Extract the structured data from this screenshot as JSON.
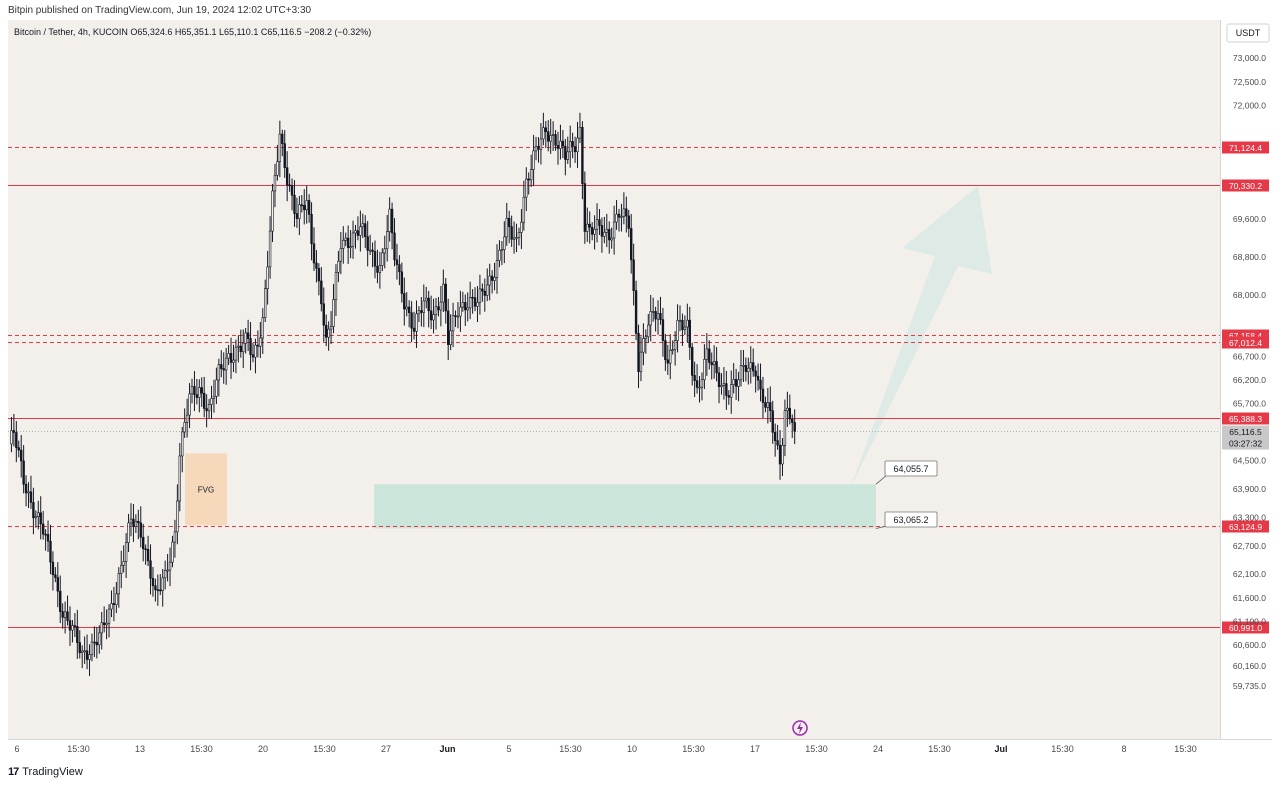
{
  "header": {
    "published": "Bitpin published on TradingView.com,  Jun 19, 2024 12:02 UTC+3:30"
  },
  "footer": {
    "logo_text": "TradingView"
  },
  "colors": {
    "background": "#f3f0ec",
    "candle": "#131722",
    "level_line": "#e53947",
    "level_label_bg": "#e53947",
    "current_price_bg": "#c8c8c8",
    "zone_fill": "#bfe2d6",
    "fvg_fill": "#f6d5b6",
    "arrow_fill": "#d3e7e2"
  },
  "chart_data": {
    "type": "candlestick",
    "symbol_line": "Bitcoin / Tether, 4h, KUCOIN  O65,324.6  H65,351.1  L65,110.1  C65,116.5  −208.2 (−0.32%)",
    "currency_label": "USDT",
    "ylim": [
      59500,
      73500
    ],
    "y_ticks": [
      "73,000.0",
      "72,500.0",
      "72,000.0",
      "69,600.0",
      "68,800.0",
      "68,000.0",
      "66,700.0",
      "66,200.0",
      "65,700.0",
      "64,500.0",
      "63,900.0",
      "63,300.0",
      "62,700.0",
      "62,100.0",
      "61,600.0",
      "61,100.0",
      "60,600.0",
      "60,160.0",
      "59,735.0"
    ],
    "y_tick_values": [
      73000,
      72500,
      72000,
      69600,
      68800,
      68000,
      66700,
      66200,
      65700,
      64500,
      63900,
      63300,
      62700,
      62100,
      61600,
      61100,
      60600,
      60160,
      59735
    ],
    "x_ticks": [
      "6",
      "15:30",
      "13",
      "15:30",
      "20",
      "15:30",
      "27",
      "Jun",
      "5",
      "15:30",
      "10",
      "15:30",
      "17",
      "15:30",
      "24",
      "15:30",
      "Jul",
      "15:30",
      "8",
      "15:30"
    ],
    "x_tick_bold": [
      false,
      false,
      false,
      false,
      false,
      false,
      false,
      true,
      false,
      false,
      false,
      false,
      false,
      false,
      false,
      false,
      true,
      false,
      false,
      false
    ],
    "horizontal_levels": [
      {
        "price": 71124.4,
        "label": "71,124.4",
        "style": "dashed"
      },
      {
        "price": 70330.2,
        "label": "70,330.2",
        "style": "solid"
      },
      {
        "price": 67158.4,
        "label": "67,158.4",
        "style": "dashed"
      },
      {
        "price": 67012.4,
        "label": "67,012.4",
        "style": "dashed"
      },
      {
        "price": 65388.3,
        "label": "65,388.3",
        "style": "solid"
      },
      {
        "price": 63124.9,
        "label": "63,124.9",
        "style": "dashed"
      },
      {
        "price": 60991.0,
        "label": "60,991.0",
        "style": "solid"
      }
    ],
    "current_price": {
      "label": "65,116.5",
      "countdown": "03:27:32"
    },
    "zones": [
      {
        "name": "demand-zone",
        "price_top": 64000,
        "price_bottom": 63065,
        "label_top": "64,055.7",
        "label_bottom": "63,065.2"
      },
      {
        "name": "fvg",
        "price_top": 64650,
        "price_bottom": 63130,
        "label": "FVG"
      }
    ],
    "projection": {
      "from_price": 63900,
      "to_price": 70300,
      "description": "upward arrow"
    },
    "swing_path": [
      [
        0,
        64850
      ],
      [
        2,
        65050
      ],
      [
        6,
        64100
      ],
      [
        10,
        63500
      ],
      [
        14,
        63000
      ],
      [
        18,
        62200
      ],
      [
        22,
        61300
      ],
      [
        26,
        60900
      ],
      [
        30,
        60400
      ],
      [
        34,
        60600
      ],
      [
        38,
        60850
      ],
      [
        42,
        61400
      ],
      [
        46,
        62300
      ],
      [
        50,
        63200
      ],
      [
        54,
        63000
      ],
      [
        58,
        62200
      ],
      [
        60,
        61600
      ],
      [
        64,
        62000
      ],
      [
        68,
        63000
      ],
      [
        70,
        64700
      ],
      [
        74,
        65800
      ],
      [
        78,
        66000
      ],
      [
        82,
        65600
      ],
      [
        86,
        66300
      ],
      [
        90,
        66700
      ],
      [
        94,
        66900
      ],
      [
        98,
        67000
      ],
      [
        100,
        66600
      ],
      [
        104,
        67500
      ],
      [
        108,
        70000
      ],
      [
        111,
        71300
      ],
      [
        114,
        70500
      ],
      [
        118,
        69700
      ],
      [
        122,
        69900
      ],
      [
        124,
        69100
      ],
      [
        128,
        68000
      ],
      [
        130,
        67000
      ],
      [
        132,
        67400
      ],
      [
        136,
        69100
      ],
      [
        140,
        69200
      ],
      [
        144,
        69400
      ],
      [
        148,
        68900
      ],
      [
        152,
        68600
      ],
      [
        156,
        69600
      ],
      [
        158,
        68800
      ],
      [
        162,
        67900
      ],
      [
        166,
        67300
      ],
      [
        170,
        67800
      ],
      [
        174,
        67600
      ],
      [
        178,
        68100
      ],
      [
        180,
        67000
      ],
      [
        184,
        67700
      ],
      [
        188,
        67900
      ],
      [
        192,
        67800
      ],
      [
        196,
        68200
      ],
      [
        200,
        68700
      ],
      [
        204,
        69400
      ],
      [
        208,
        69100
      ],
      [
        212,
        70400
      ],
      [
        216,
        71000
      ],
      [
        220,
        71500
      ],
      [
        224,
        71300
      ],
      [
        228,
        70900
      ],
      [
        232,
        71200
      ],
      [
        234,
        71500
      ],
      [
        236,
        69500
      ],
      [
        238,
        69300
      ],
      [
        242,
        69400
      ],
      [
        246,
        69300
      ],
      [
        250,
        69700
      ],
      [
        254,
        69500
      ],
      [
        256,
        68000
      ],
      [
        258,
        66600
      ],
      [
        262,
        67400
      ],
      [
        266,
        67600
      ],
      [
        270,
        66600
      ],
      [
        274,
        67300
      ],
      [
        278,
        67300
      ],
      [
        280,
        66500
      ],
      [
        282,
        66000
      ],
      [
        286,
        66700
      ],
      [
        290,
        66300
      ],
      [
        294,
        66000
      ],
      [
        298,
        66100
      ],
      [
        302,
        66500
      ],
      [
        306,
        66500
      ],
      [
        308,
        65900
      ],
      [
        312,
        65400
      ],
      [
        316,
        64500
      ],
      [
        318,
        65600
      ],
      [
        322,
        65300
      ]
    ]
  }
}
